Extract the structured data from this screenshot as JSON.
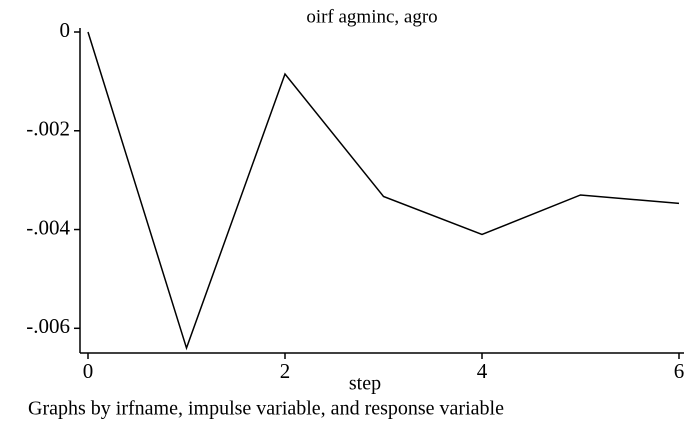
{
  "chart_data": {
    "type": "line",
    "title": "oirf agminc, agro",
    "x_label": "step",
    "note": "Graphs by irfname, impulse variable, and response variable",
    "x": [
      0,
      1,
      2,
      3,
      4,
      5,
      6
    ],
    "series": [
      {
        "color": "#000000",
        "values": [
          0,
          -0.0064,
          -0.00085,
          -0.00333,
          -0.0041,
          -0.0033,
          -0.00347
        ]
      }
    ],
    "xlim": [
      0,
      6
    ],
    "xticks": [
      0,
      2,
      4,
      6
    ],
    "ylim": [
      -0.0065,
      0
    ],
    "yticks": [
      0,
      {
        "value": -0.002,
        "label": "-.002"
      },
      {
        "value": -0.004,
        "label": "-.004"
      },
      {
        "value": -0.006,
        "label": "-.006"
      }
    ],
    "grid": false
  }
}
